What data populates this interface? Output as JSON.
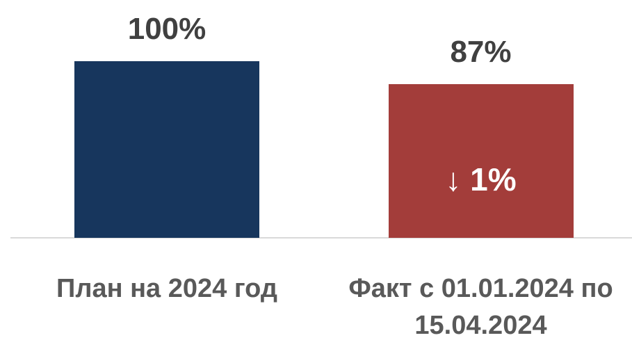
{
  "chart_data": {
    "type": "bar",
    "categories": [
      "План на 2024 год",
      "Факт с 01.01.2024 по 15.04.2024"
    ],
    "values": [
      100,
      87
    ],
    "value_labels": [
      "100%",
      "87%"
    ],
    "colors": [
      "#17365d",
      "#a33d3a"
    ],
    "annotation": "↓ 1%"
  }
}
